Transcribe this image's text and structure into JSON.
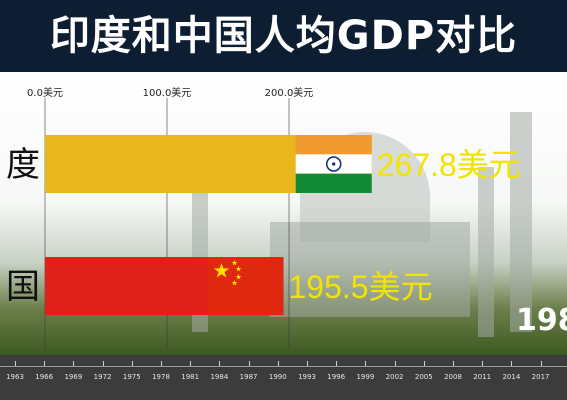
{
  "chart_data": {
    "type": "bar",
    "title": "印度和中国人均GDP对比",
    "categories": [
      "度",
      "国"
    ],
    "values": [
      267.8,
      195.5
    ],
    "value_labels": [
      "267.8美元",
      "195.5美元"
    ],
    "value_unit": "美元",
    "axis_ticks": [
      0.0,
      100.0,
      200.0
    ],
    "axis_tick_labels": [
      "0.0美元",
      "100.0美元",
      "200.0美元"
    ],
    "axis_range": [
      0,
      270
    ],
    "bar_colors": [
      "#e8b71d",
      "#e0211b"
    ],
    "grid": true,
    "orientation": "horizontal",
    "year": "198",
    "timeline_years": [
      "1963",
      "1966",
      "1969",
      "1972",
      "1975",
      "1978",
      "1981",
      "1984",
      "1987",
      "1990",
      "1993",
      "1996",
      "1999",
      "2002",
      "2005",
      "2008",
      "2011",
      "2014",
      "2017"
    ]
  },
  "flags": [
    {
      "name": "india-flag-icon"
    },
    {
      "name": "china-flag-icon"
    }
  ],
  "colors": {
    "title_background": "#0d1e33",
    "title_text": "#ffffff",
    "value_text": "#f0e400",
    "timeline_background": "#3c3c3c"
  }
}
